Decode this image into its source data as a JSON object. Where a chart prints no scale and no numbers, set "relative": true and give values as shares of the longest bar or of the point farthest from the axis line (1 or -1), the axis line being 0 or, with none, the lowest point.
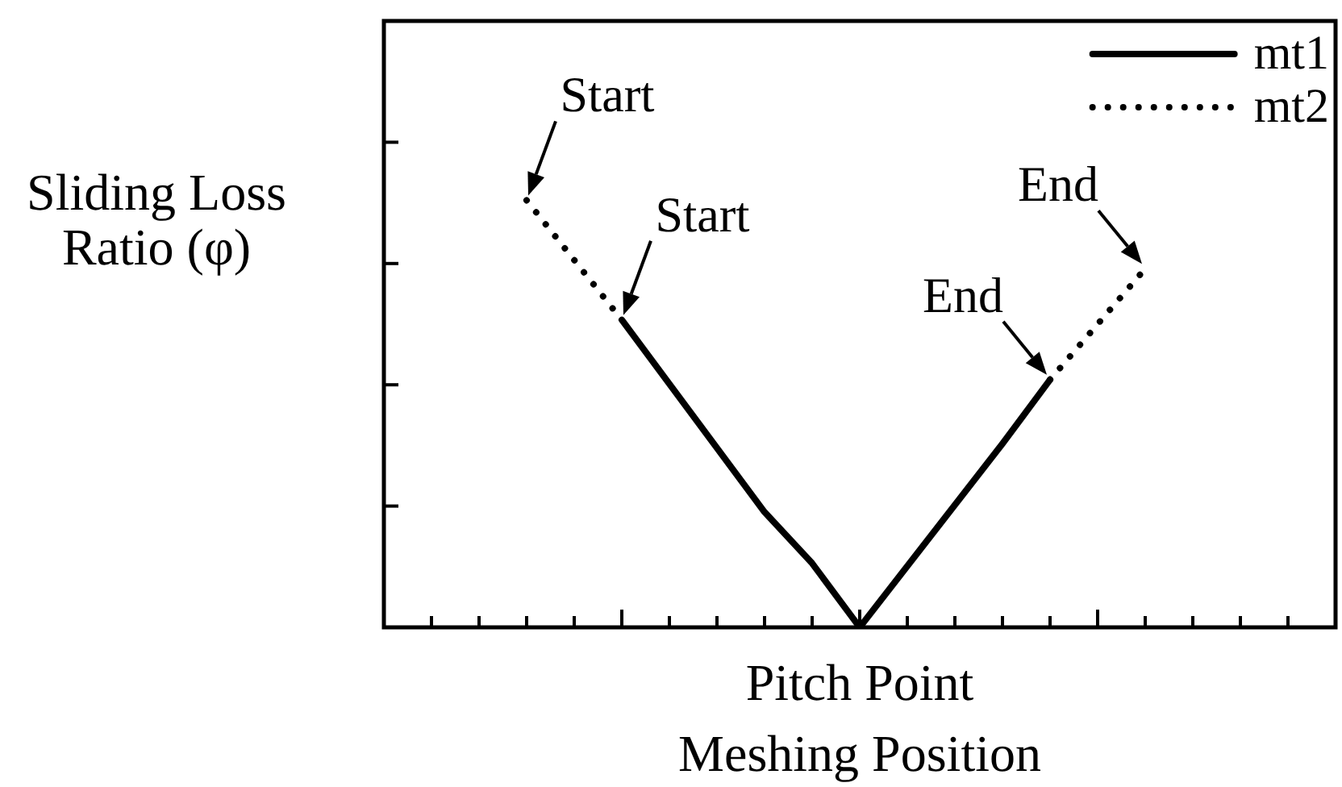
{
  "chart_data": {
    "type": "line",
    "relative": true,
    "xlabel": "Meshing Position",
    "ylabel": "Sliding Loss Ratio (φ)",
    "categories": [
      null,
      null,
      null,
      null,
      null,
      null,
      null,
      null,
      null,
      null,
      null,
      null,
      null,
      null,
      null,
      null,
      null,
      null,
      null,
      null,
      null
    ],
    "series": [
      {
        "name": "mt1",
        "color": "#000000",
        "line_style": "solid",
        "values": [
          null,
          null,
          null,
          null,
          null,
          0.72,
          null,
          null,
          0.27,
          0.15,
          0,
          null,
          null,
          0.43,
          0.58,
          null,
          null,
          null,
          null,
          null,
          null
        ]
      },
      {
        "name": "mt2",
        "color": "#000000",
        "line_style": "dotted",
        "values": [
          null,
          null,
          null,
          1,
          null,
          0.72,
          null,
          null,
          null,
          null,
          null,
          null,
          null,
          null,
          null,
          null,
          null,
          null,
          null,
          null,
          null
        ]
      },
      {
        "color": "#000000",
        "line_style": "dotted",
        "values": [
          null,
          null,
          null,
          null,
          null,
          null,
          null,
          null,
          null,
          null,
          null,
          null,
          null,
          null,
          0.58,
          null,
          0.84,
          null,
          null,
          null,
          null
        ]
      }
    ],
    "legend": "top right",
    "marker": "none",
    "annotations": [
      "Start",
      "Start",
      "End",
      "End",
      {
        "text": "Pitch Point",
        "y": 0
      }
    ]
  }
}
